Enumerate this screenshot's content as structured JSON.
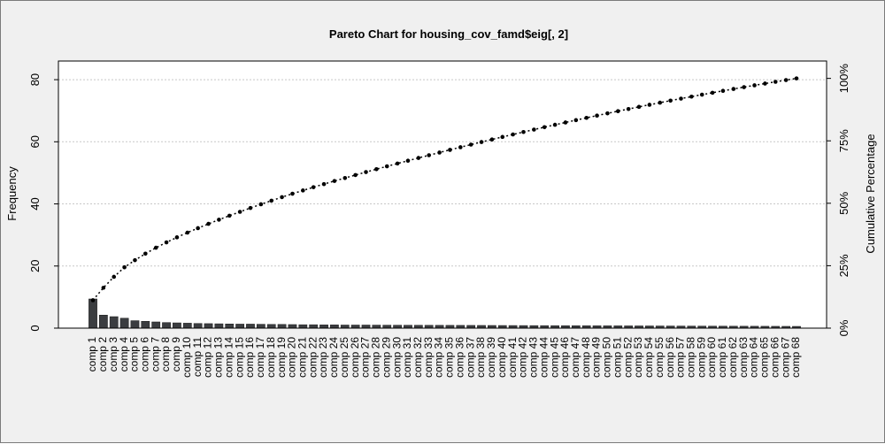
{
  "chart_data": {
    "type": "bar",
    "title": "Pareto Chart for housing_cov_famd$eig[, 2]",
    "ylabel": "Frequency",
    "ylabel_right": "Cumulative Percentage",
    "ylim": [
      0,
      86
    ],
    "yticks": [
      0,
      20,
      40,
      60,
      80
    ],
    "yticks_right": [
      "0%",
      "25%",
      "50%",
      "75%",
      "100%"
    ],
    "grid": true,
    "colors": {
      "bar": "#3b3d40",
      "bar_border": "#1a1a1a",
      "cumulative": "#000000",
      "grid": "#c8c8c8",
      "plot_bg": "#ffffff",
      "frame_bg": "#f0f0f0"
    },
    "categories": [
      "comp 1",
      "comp 2",
      "comp 3",
      "comp 4",
      "comp 5",
      "comp 6",
      "comp 7",
      "comp 8",
      "comp 9",
      "comp 10",
      "comp 11",
      "comp 12",
      "comp 13",
      "comp 14",
      "comp 15",
      "comp 16",
      "comp 17",
      "comp 18",
      "comp 19",
      "comp 20",
      "comp 21",
      "comp 22",
      "comp 23",
      "comp 24",
      "comp 25",
      "comp 26",
      "comp 27",
      "comp 28",
      "comp 29",
      "comp 30",
      "comp 31",
      "comp 32",
      "comp 33",
      "comp 34",
      "comp 35",
      "comp 36",
      "comp 37",
      "comp 38",
      "comp 39",
      "comp 40",
      "comp 41",
      "comp 42",
      "comp 43",
      "comp 44",
      "comp 45",
      "comp 46",
      "comp 47",
      "comp 48",
      "comp 49",
      "comp 50",
      "comp 51",
      "comp 52",
      "comp 53",
      "comp 54",
      "comp 55",
      "comp 56",
      "comp 57",
      "comp 58",
      "comp 59",
      "comp 60",
      "comp 61",
      "comp 62",
      "comp 63",
      "comp 64",
      "comp 65",
      "comp 66",
      "comp 67",
      "comp 68"
    ],
    "values": [
      9.4,
      4.2,
      3.7,
      3.2,
      2.4,
      2.2,
      2.0,
      1.8,
      1.7,
      1.6,
      1.5,
      1.45,
      1.4,
      1.35,
      1.3,
      1.3,
      1.25,
      1.2,
      1.2,
      1.15,
      1.1,
      1.1,
      1.05,
      1.05,
      1.0,
      1.0,
      1.0,
      0.98,
      0.96,
      0.95,
      0.94,
      0.93,
      0.92,
      0.91,
      0.9,
      0.89,
      0.88,
      0.87,
      0.86,
      0.85,
      0.84,
      0.83,
      0.82,
      0.81,
      0.8,
      0.79,
      0.78,
      0.77,
      0.76,
      0.75,
      0.74,
      0.73,
      0.72,
      0.71,
      0.7,
      0.69,
      0.68,
      0.67,
      0.66,
      0.65,
      0.64,
      0.63,
      0.62,
      0.61,
      0.6,
      0.59,
      0.58,
      0.57
    ]
  }
}
